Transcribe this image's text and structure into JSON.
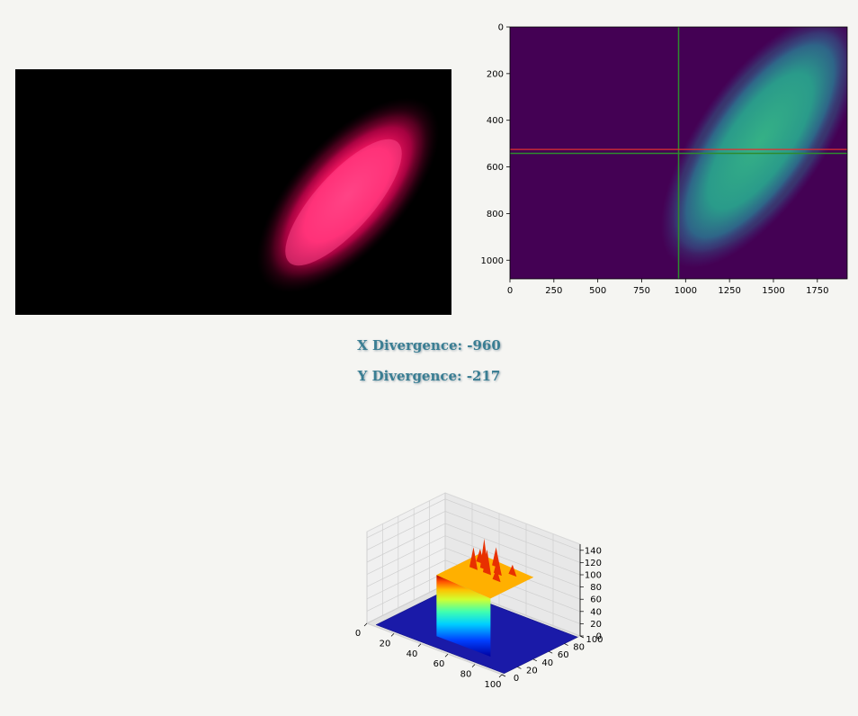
{
  "readouts": {
    "x_divergence": "X Divergence: -960",
    "y_divergence": "Y Divergence: -217"
  },
  "colors": {
    "background": "#f5f5f2",
    "readout_text": "#3a7e93",
    "heatmap_background": "#440154",
    "heatmap_beam": "#2a9b8a",
    "crosshair_green": "#2e8b2e",
    "crosshair_red": "#e03030",
    "beam_pink": "#ff1a66"
  },
  "chart_data": [
    {
      "type": "heatmap",
      "title": "",
      "xlabel": "",
      "ylabel": "",
      "xlim": [
        0,
        1920
      ],
      "ylim": [
        1080,
        0
      ],
      "x_ticks": [
        "0",
        "250",
        "500",
        "750",
        "1000",
        "1250",
        "1500",
        "1750"
      ],
      "y_ticks": [
        "0",
        "200",
        "400",
        "600",
        "800",
        "1000"
      ],
      "x_tick_values": [
        0,
        250,
        500,
        750,
        1000,
        1250,
        1500,
        1750
      ],
      "y_tick_values": [
        0,
        200,
        400,
        600,
        800,
        1000
      ],
      "colormap": "viridis",
      "beam_region": {
        "x_range": [
          1000,
          1850
        ],
        "y_range": [
          50,
          930
        ]
      },
      "crosshair": {
        "vertical_x": 960,
        "horizontal_y_green": 542,
        "horizontal_y_red": 525
      }
    },
    {
      "type": "surface",
      "title": "",
      "colormap": "jet",
      "x_ticks": [
        "0",
        "20",
        "40",
        "60",
        "80",
        "100"
      ],
      "y_ticks": [
        "0",
        "20",
        "40",
        "60",
        "80",
        "100"
      ],
      "z_ticks": [
        "0",
        "20",
        "40",
        "60",
        "80",
        "100",
        "120",
        "140"
      ],
      "z_range": [
        0,
        150
      ],
      "plateau_height": 100,
      "peak_height": 150
    }
  ]
}
